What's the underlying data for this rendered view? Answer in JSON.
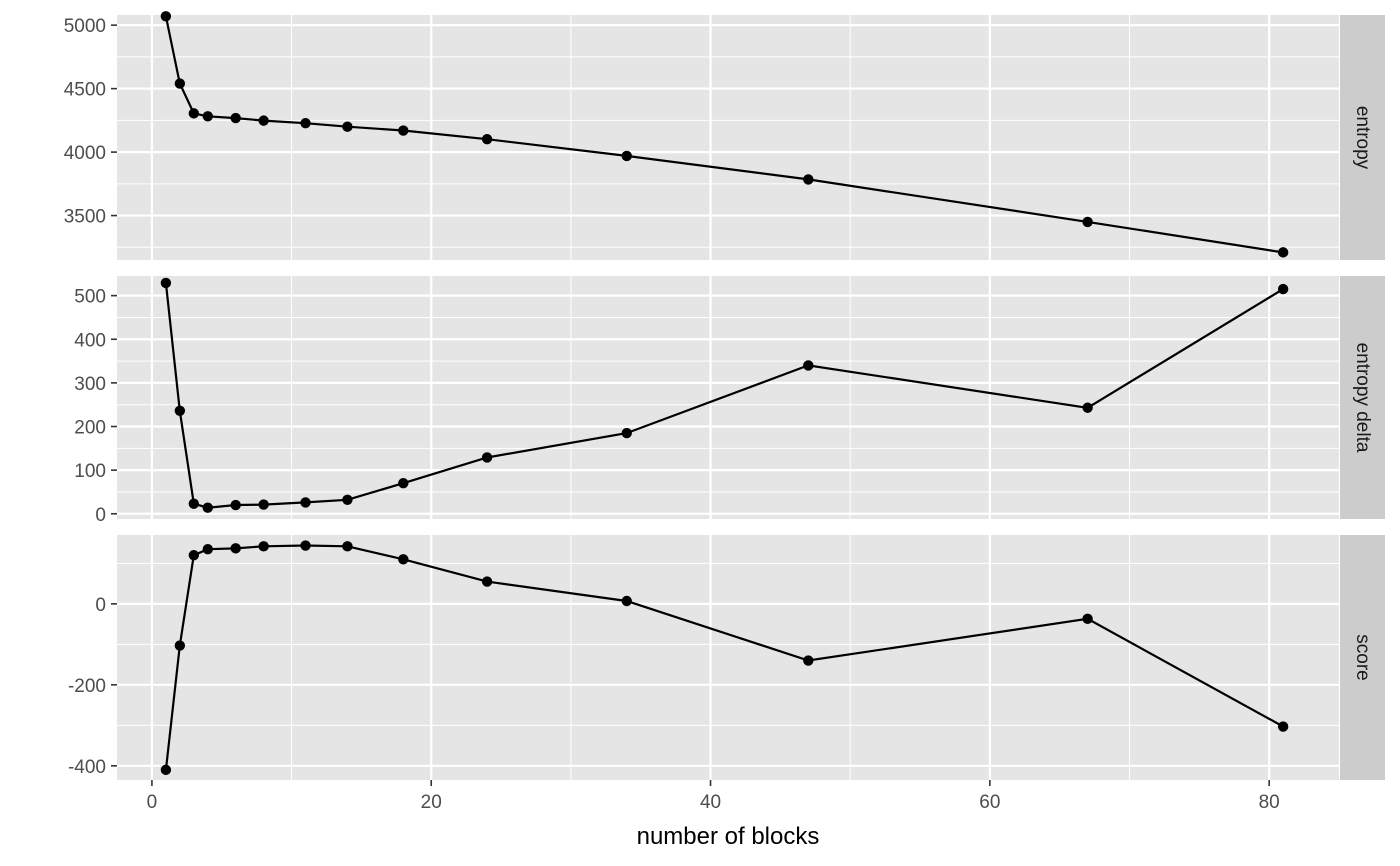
{
  "chart_data": {
    "type": "line",
    "layout": "faceted-vertical",
    "xlabel": "number of blocks",
    "xlim": [
      -2.5,
      85
    ],
    "xticks": [
      0,
      20,
      40,
      60,
      80
    ],
    "x": [
      1,
      2,
      3,
      4,
      6,
      8,
      11,
      14,
      18,
      24,
      34,
      47,
      67,
      81
    ],
    "panels": [
      {
        "strip_label": "entropy",
        "ylim": [
          3150,
          5080
        ],
        "yticks": [
          3500,
          4000,
          4500,
          5000
        ],
        "ytick_labels": [
          "3500",
          "4000",
          "4500",
          "5000"
        ],
        "values": [
          5070,
          4540,
          4305,
          4282,
          4268,
          4248,
          4228,
          4200,
          4170,
          4102,
          3970,
          3785,
          3450,
          3210
        ]
      },
      {
        "strip_label": "entropy delta",
        "ylim": [
          -12,
          545
        ],
        "yticks": [
          0,
          100,
          200,
          300,
          400,
          500
        ],
        "ytick_labels": [
          "0",
          "100",
          "200",
          "300",
          "400",
          "500"
        ],
        "values": [
          529,
          236,
          23,
          14,
          20,
          21,
          26,
          32,
          70,
          129,
          185,
          340,
          243,
          515
        ]
      },
      {
        "strip_label": "score",
        "ylim": [
          -435,
          170
        ],
        "yticks": [
          -400,
          -200,
          0
        ],
        "ytick_labels": [
          "-400",
          "-200",
          "0"
        ],
        "values": [
          -410,
          -103,
          120,
          135,
          137,
          142,
          144,
          142,
          110,
          55,
          7,
          -140,
          -37,
          -303
        ]
      }
    ],
    "grid": true,
    "legend": "none",
    "colors": {
      "panel_background": "#e5e5e5",
      "strip_background": "#cccccc",
      "grid_major": "#ffffff",
      "line": "#000000",
      "point": "#000000"
    }
  }
}
